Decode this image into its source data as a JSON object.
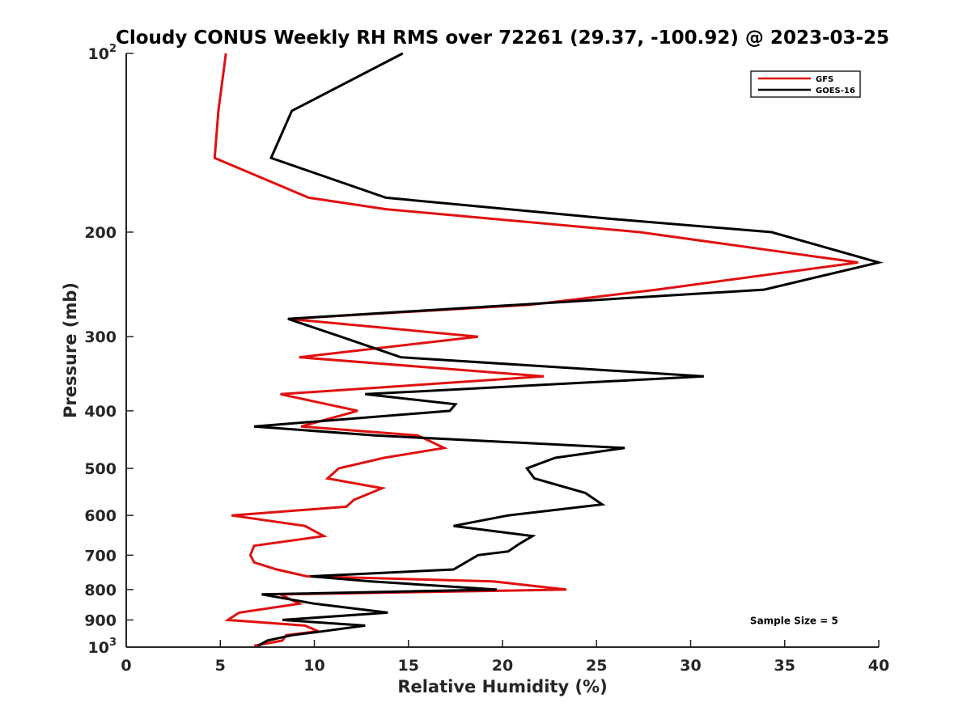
{
  "chart_data": {
    "type": "line",
    "title": "Cloudy CONUS Weekly RH RMS over 72261 (29.37, -100.92) @ 2023-03-25",
    "xlabel": "Relative Humidity (%)",
    "ylabel": "Pressure (mb)",
    "xlim": [
      0,
      40
    ],
    "ylim": [
      100,
      1000
    ],
    "y_scale": "log",
    "y_reversed": true,
    "grid": false,
    "legend_position": "top-right",
    "x_ticks": [
      "0",
      "5",
      "10",
      "15",
      "20",
      "25",
      "30",
      "35",
      "40"
    ],
    "y_ticks": [
      {
        "value": 100,
        "base": "10",
        "exp": "2"
      },
      {
        "value": 200,
        "label": "200"
      },
      {
        "value": 300,
        "label": "300"
      },
      {
        "value": 400,
        "label": "400"
      },
      {
        "value": 500,
        "label": "500"
      },
      {
        "value": 600,
        "label": "600"
      },
      {
        "value": 700,
        "label": "700"
      },
      {
        "value": 800,
        "label": "800"
      },
      {
        "value": 900,
        "label": "900"
      },
      {
        "value": 1000,
        "base": "10",
        "exp": "3"
      }
    ],
    "series": [
      {
        "name": "GFS",
        "color": "#e01010",
        "points": [
          [
            5.3,
            100
          ],
          [
            4.9,
            125
          ],
          [
            4.7,
            150
          ],
          [
            9.7,
            175
          ],
          [
            13.8,
            183
          ],
          [
            27.3,
            200
          ],
          [
            38.9,
            225
          ],
          [
            28.2,
            250
          ],
          [
            21.5,
            265
          ],
          [
            8.6,
            280
          ],
          [
            18.7,
            300
          ],
          [
            9.2,
            325
          ],
          [
            22.2,
            350
          ],
          [
            8.2,
            375
          ],
          [
            12.3,
            400
          ],
          [
            9.3,
            425
          ],
          [
            15.5,
            440
          ],
          [
            16.9,
            462
          ],
          [
            13.7,
            480
          ],
          [
            11.3,
            500
          ],
          [
            10.7,
            520
          ],
          [
            13.6,
            540
          ],
          [
            12.1,
            565
          ],
          [
            11.7,
            580
          ],
          [
            5.6,
            600
          ],
          [
            9.5,
            625
          ],
          [
            10.5,
            650
          ],
          [
            6.8,
            675
          ],
          [
            6.6,
            700
          ],
          [
            6.8,
            720
          ],
          [
            8.0,
            740
          ],
          [
            9.6,
            760
          ],
          [
            19.5,
            775
          ],
          [
            23.4,
            800
          ],
          [
            8.2,
            815
          ],
          [
            9.2,
            845
          ],
          [
            6.0,
            875
          ],
          [
            5.4,
            900
          ],
          [
            9.5,
            920
          ],
          [
            10.2,
            940
          ],
          [
            8.5,
            955
          ],
          [
            8.3,
            975
          ],
          [
            6.8,
            995
          ]
        ]
      },
      {
        "name": "GOES-16",
        "color": "#000000",
        "points": [
          [
            14.7,
            100
          ],
          [
            8.8,
            125
          ],
          [
            7.7,
            150
          ],
          [
            13.8,
            175
          ],
          [
            25.8,
            190
          ],
          [
            34.3,
            200
          ],
          [
            40.0,
            225
          ],
          [
            33.9,
            250
          ],
          [
            8.6,
            280
          ],
          [
            11.4,
            300
          ],
          [
            14.6,
            325
          ],
          [
            30.7,
            350
          ],
          [
            12.7,
            375
          ],
          [
            17.5,
            390
          ],
          [
            17.2,
            400
          ],
          [
            6.8,
            425
          ],
          [
            13.2,
            440
          ],
          [
            26.5,
            462
          ],
          [
            22.8,
            480
          ],
          [
            21.3,
            500
          ],
          [
            21.7,
            520
          ],
          [
            24.4,
            550
          ],
          [
            25.3,
            575
          ],
          [
            20.3,
            600
          ],
          [
            17.4,
            625
          ],
          [
            21.6,
            650
          ],
          [
            20.9,
            670
          ],
          [
            20.3,
            690
          ],
          [
            18.7,
            700
          ],
          [
            17.4,
            740
          ],
          [
            9.8,
            760
          ],
          [
            13.0,
            775
          ],
          [
            19.7,
            800
          ],
          [
            7.2,
            815
          ],
          [
            10.0,
            845
          ],
          [
            13.9,
            875
          ],
          [
            8.3,
            900
          ],
          [
            12.7,
            920
          ],
          [
            10.5,
            940
          ],
          [
            8.8,
            955
          ],
          [
            7.5,
            975
          ],
          [
            7.0,
            995
          ]
        ]
      }
    ],
    "annotations": [
      {
        "text": "Sample Size = 5",
        "x": 35.5,
        "y": 900
      }
    ]
  }
}
